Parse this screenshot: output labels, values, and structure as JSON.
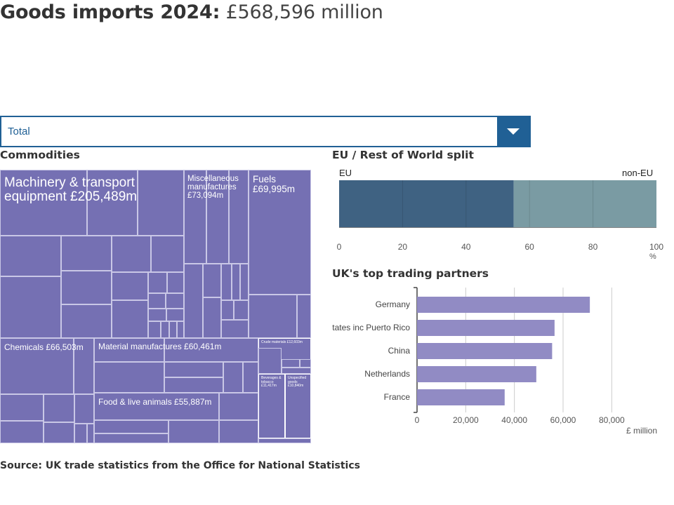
{
  "header": {
    "title_bold": "Goods imports 2024:",
    "title_value": "£568,596 million"
  },
  "selector": {
    "value": "Total",
    "icon": "chevron-down-icon"
  },
  "commodities": {
    "heading": "Commodities",
    "labels": {
      "machinery": "Machinery & transport equipment £205,489m",
      "misc": "Miscellaneous manufactures £73,094m",
      "fuels": "Fuels £69,995m",
      "chemicals": "Chemicals £66,503m",
      "material": "Material manufactures £60,461m",
      "food": "Food & live animals £55,887m",
      "crude": "Crude materials £12,603m",
      "beverages": "Beverages & tobacco £11,417m",
      "unspecified": "Unspecified goods £10,840m"
    },
    "colors": {
      "fill": "#7570b3",
      "border": "#ffffff"
    }
  },
  "eu_split": {
    "heading": "EU / Rest of World split",
    "label_left": "EU",
    "label_right": "non-EU",
    "unit": "%",
    "eu_share": 55,
    "ticks": [
      "0",
      "20",
      "40",
      "60",
      "80",
      "100"
    ],
    "colors": {
      "eu": "#3f6282",
      "non_eu": "#7a9ba3"
    }
  },
  "chart_data": {
    "type": "bar",
    "title": "UK's top trading partners",
    "categories": [
      "Germany",
      "United States inc Puerto Rico",
      "China",
      "Netherlands",
      "France"
    ],
    "visible_category_labels": [
      "Germany",
      "tates inc Puerto Rico",
      "China",
      "Netherlands",
      "France"
    ],
    "values": [
      71000,
      56500,
      55500,
      49000,
      36000
    ],
    "xlabel": "£ million",
    "xlim": [
      0,
      90000
    ],
    "xticks": [
      0,
      20000,
      40000,
      60000,
      80000
    ],
    "xtick_labels": [
      "0",
      "20,000",
      "40,000",
      "60,000",
      "80,000"
    ],
    "orientation": "horizontal",
    "grid": true,
    "color": "#918bc4"
  },
  "footer": {
    "source": "Source: UK trade statistics from the Office for National Statistics"
  }
}
